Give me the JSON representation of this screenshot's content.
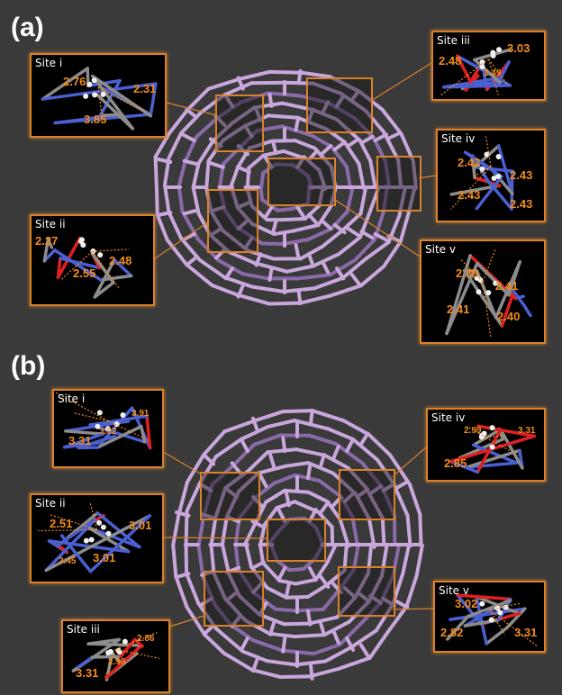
{
  "panels": {
    "a": {
      "label": "(a)",
      "sites": {
        "i": {
          "title": "Site i",
          "d": [
            "2.76",
            "2.31",
            "3.85"
          ]
        },
        "ii": {
          "title": "Site ii",
          "d": [
            "2.27",
            "2.48",
            "2.55"
          ]
        },
        "iii": {
          "title": "Site iii",
          "d": [
            "3.03",
            "2.48",
            "2.49"
          ]
        },
        "iv": {
          "title": "Site iv",
          "d": [
            "2.42",
            "2.43",
            "2.43",
            "2.43"
          ]
        },
        "v": {
          "title": "Site v",
          "d": [
            "2.39",
            "2.41",
            "2.41",
            "2.40"
          ]
        }
      }
    },
    "b": {
      "label": "(b)",
      "sites": {
        "i": {
          "title": "Site i",
          "d": [
            "3.91",
            "3.02",
            "3.31"
          ]
        },
        "ii": {
          "title": "Site ii",
          "d": [
            "2.51",
            "3.01",
            "2.45",
            "3.01"
          ]
        },
        "iii": {
          "title": "Site iii",
          "d": [
            "2.86",
            "2.99",
            "3.31"
          ]
        },
        "iv": {
          "title": "Site iv",
          "d": [
            "2.99",
            "3.31",
            "2.85"
          ]
        },
        "v": {
          "title": "Site v",
          "d": [
            "3.02",
            "2.82",
            "3.31"
          ]
        }
      }
    }
  },
  "colors": {
    "background": "#3a3a3a",
    "cage": "#c9a7dc",
    "cage_dark": "#8a6aa8",
    "frame": "#d9822b",
    "distance": "#f28c1c",
    "oxygen": "#e02020",
    "nitrogen": "#4a5fd0",
    "carbon": "#8c8c8c",
    "hydrogen": "#f0f0f0"
  }
}
